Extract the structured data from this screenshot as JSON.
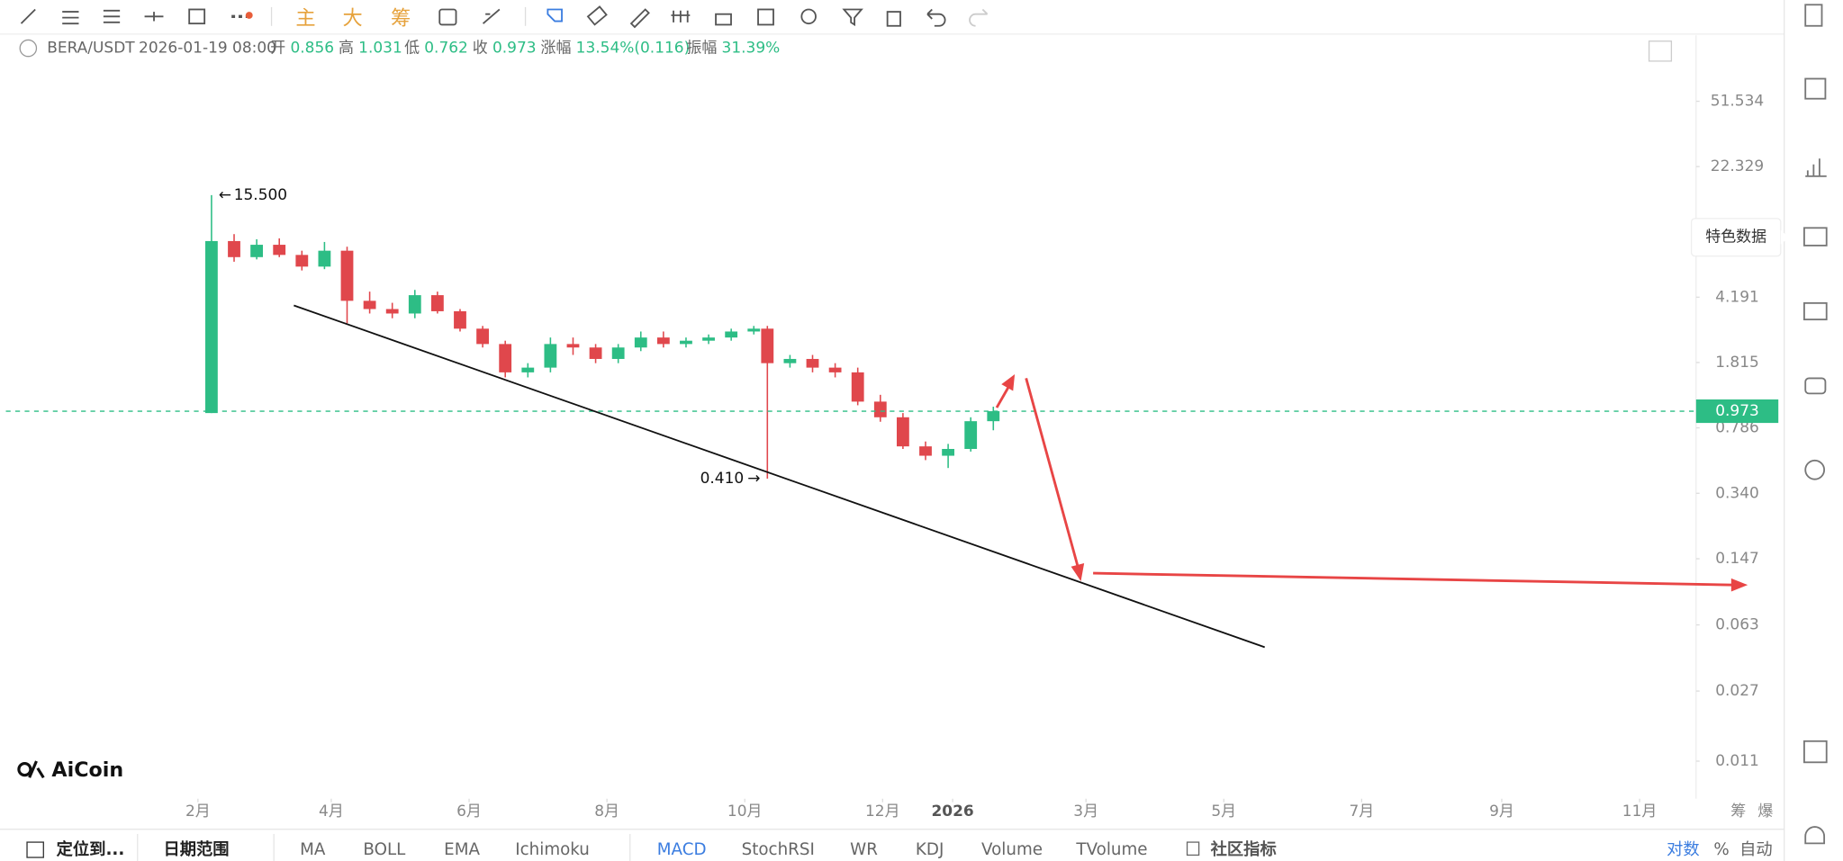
{
  "toolbar": {
    "main": "主",
    "big": "大",
    "chips": "筹"
  },
  "header": {
    "symbol": "BERA/USDT",
    "time": "2026-01-19 08:00",
    "open_label": "开",
    "open": 0.856,
    "high_label": "高",
    "high": 1.031,
    "low_label": "低",
    "low": 0.762,
    "close_label": "收",
    "close": 0.973,
    "change_label": "涨幅",
    "change": "13.54%(0.116)",
    "amplitude_label": "振幅",
    "amplitude": "31.39%"
  },
  "chart_data": {
    "type": "candlestick",
    "log_scale": true,
    "up_color": "#2dbd85",
    "down_color": "#e0474c",
    "x": [
      37,
      47,
      57,
      67,
      77,
      87,
      97,
      107,
      117,
      127,
      137,
      147,
      157,
      167,
      177,
      187,
      197,
      207,
      217,
      227,
      237,
      247,
      257,
      267,
      277,
      283,
      293,
      303,
      313,
      323,
      333,
      343,
      353,
      363,
      373,
      383
    ],
    "open": [
      0.95,
      8.6,
      7.0,
      8.2,
      7.2,
      6.2,
      7.6,
      4.0,
      3.6,
      3.4,
      4.3,
      3.5,
      2.8,
      2.3,
      1.6,
      1.7,
      2.3,
      2.2,
      1.9,
      2.2,
      2.5,
      2.3,
      2.4,
      2.5,
      2.7,
      2.8,
      1.8,
      1.9,
      1.7,
      1.6,
      1.1,
      0.9,
      0.62,
      0.55,
      0.6,
      0.856
    ],
    "high": [
      15.5,
      9.4,
      8.8,
      8.9,
      7.6,
      8.5,
      8.0,
      4.5,
      3.9,
      4.6,
      4.5,
      3.6,
      2.9,
      2.4,
      1.8,
      2.5,
      2.5,
      2.3,
      2.3,
      2.7,
      2.7,
      2.5,
      2.6,
      2.8,
      2.9,
      2.9,
      2.0,
      2.0,
      1.8,
      1.7,
      1.2,
      0.95,
      0.66,
      0.64,
      0.9,
      1.031
    ],
    "low": [
      0.95,
      6.6,
      6.8,
      7.0,
      5.9,
      6.0,
      3.0,
      3.4,
      3.2,
      3.2,
      3.4,
      2.7,
      2.2,
      1.5,
      1.5,
      1.6,
      2.0,
      1.8,
      1.8,
      2.1,
      2.2,
      2.2,
      2.3,
      2.4,
      2.6,
      0.41,
      1.7,
      1.6,
      1.5,
      1.05,
      0.85,
      0.6,
      0.52,
      0.47,
      0.58,
      0.762
    ],
    "close": [
      8.6,
      7.0,
      8.2,
      7.2,
      6.2,
      7.6,
      4.0,
      3.6,
      3.4,
      4.3,
      3.5,
      2.8,
      2.3,
      1.6,
      1.7,
      2.3,
      2.2,
      1.9,
      2.2,
      2.5,
      2.3,
      2.4,
      2.5,
      2.7,
      2.8,
      1.8,
      1.9,
      1.7,
      1.6,
      1.1,
      0.9,
      0.62,
      0.55,
      0.6,
      0.856,
      0.973
    ],
    "xlim": [
      -54,
      694
    ],
    "xticks": [
      {
        "value": 31,
        "label": "2月"
      },
      {
        "value": 90,
        "label": "4月"
      },
      {
        "value": 151,
        "label": "6月"
      },
      {
        "value": 212,
        "label": "8月"
      },
      {
        "value": 273,
        "label": "10月"
      },
      {
        "value": 334,
        "label": "12月"
      },
      {
        "value": 365,
        "label": "2026"
      },
      {
        "value": 424,
        "label": "3月"
      },
      {
        "value": 485,
        "label": "5月"
      },
      {
        "value": 546,
        "label": "7月"
      },
      {
        "value": 608,
        "label": "9月"
      },
      {
        "value": 669,
        "label": "11月"
      }
    ],
    "ylim": [
      0.0068,
      120
    ],
    "yticks": [
      51.534,
      22.329,
      4.191,
      1.815,
      0.786,
      {
        "value": 0.34,
        "label": "0.340"
      },
      0.147,
      0.063,
      0.027,
      0.011
    ],
    "annotations": [
      {
        "value": 15.5,
        "label": "15.500"
      },
      {
        "value": 0.41,
        "label": "0.410"
      }
    ],
    "last_price": 0.973
  },
  "logo": "AiCoin",
  "sidebar": {
    "tooltip": "特色数据"
  },
  "axis_tools": {
    "chips": "筹",
    "liquidation": "爆"
  },
  "bottom_bar": {
    "locate": "定位到...",
    "range": "日期范围",
    "indicators": [
      "MA",
      "BOLL",
      "EMA",
      "Ichimoku"
    ],
    "sub_indicators": [
      "MACD",
      "StochRSI",
      "WR",
      "KDJ",
      "Volume",
      "TVolume"
    ],
    "community": "社区指标",
    "log": "对数",
    "percent": "%",
    "auto": "自动"
  }
}
